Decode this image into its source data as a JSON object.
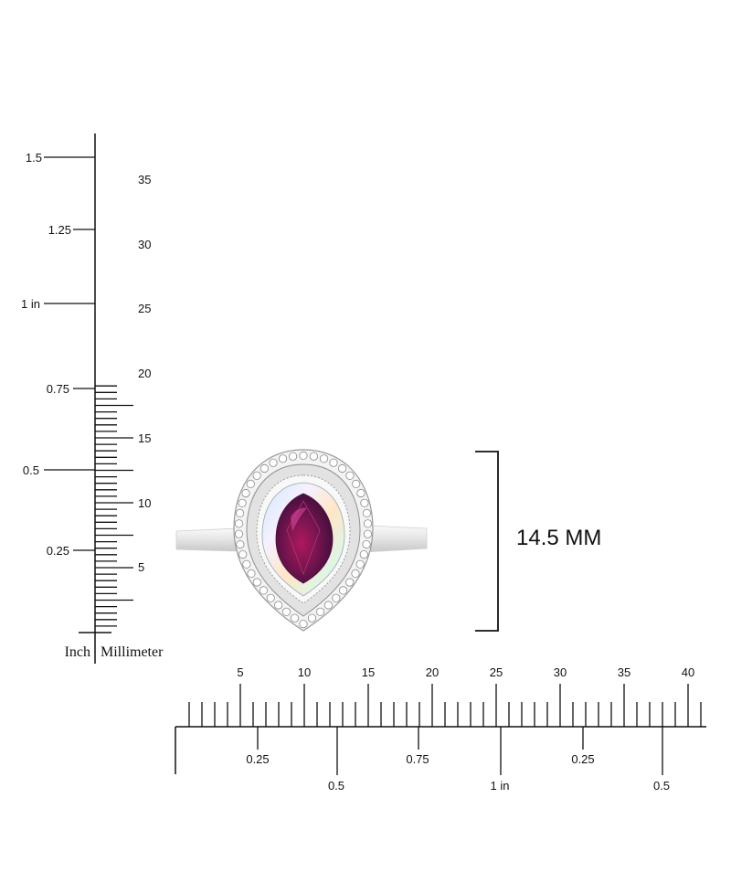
{
  "vertical_ruler": {
    "inch_labels": [
      "0.25",
      "0.5",
      "0.75",
      "1 in",
      "1.25",
      "1.5"
    ],
    "mm_labels": [
      "5",
      "10",
      "15",
      "20",
      "25",
      "30",
      "35"
    ],
    "unit_inch": "Inch",
    "unit_mm": "Millimeter"
  },
  "horizontal_ruler": {
    "mm_labels": [
      "5",
      "10",
      "15",
      "20",
      "25",
      "30",
      "35",
      "40"
    ],
    "inch_labels": [
      "0.25",
      "0.5",
      "0.75",
      "1 in",
      "0.25",
      "0.5"
    ]
  },
  "dimension": {
    "label": "14.5 MM"
  },
  "product": {
    "image_icon": "pear-halo-ring-icon",
    "colors": {
      "center_stone": "#7a1550",
      "metal": "#e6e6e6",
      "halo": "#f4f4f4"
    }
  }
}
